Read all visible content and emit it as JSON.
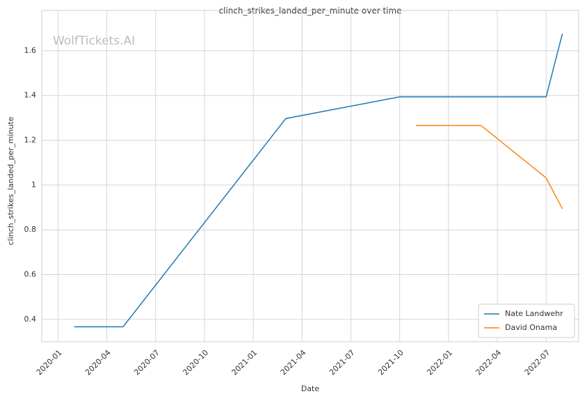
{
  "chart_data": {
    "type": "line",
    "title": "clinch_strikes_landed_per_minute over time",
    "xlabel": "Date",
    "ylabel": "clinch_strikes_landed_per_minute",
    "watermark": "WolfTickets.AI",
    "series": [
      {
        "name": "Nate Landwehr",
        "color": "#1f77b4",
        "x": [
          "2020-02",
          "2020-05",
          "2021-03",
          "2021-10",
          "2022-07",
          "2022-08"
        ],
        "values": [
          0.367,
          0.367,
          1.297,
          1.394,
          1.394,
          1.676
        ]
      },
      {
        "name": "David Onama",
        "color": "#ff7f0e",
        "x": [
          "2021-11",
          "2022-03",
          "2022-07",
          "2022-08"
        ],
        "values": [
          1.266,
          1.266,
          1.032,
          0.894
        ]
      }
    ],
    "xlim": [
      "2019-12",
      "2022-09"
    ],
    "xticks": [
      "2020-01",
      "2020-04",
      "2020-07",
      "2020-10",
      "2021-01",
      "2021-04",
      "2021-07",
      "2021-10",
      "2022-01",
      "2022-04",
      "2022-07"
    ],
    "ylim": [
      0.3,
      1.78
    ],
    "yticks": [
      0.4,
      0.6,
      0.8,
      1.0,
      1.2,
      1.4,
      1.6
    ],
    "grid": true,
    "legend": "lower right"
  }
}
